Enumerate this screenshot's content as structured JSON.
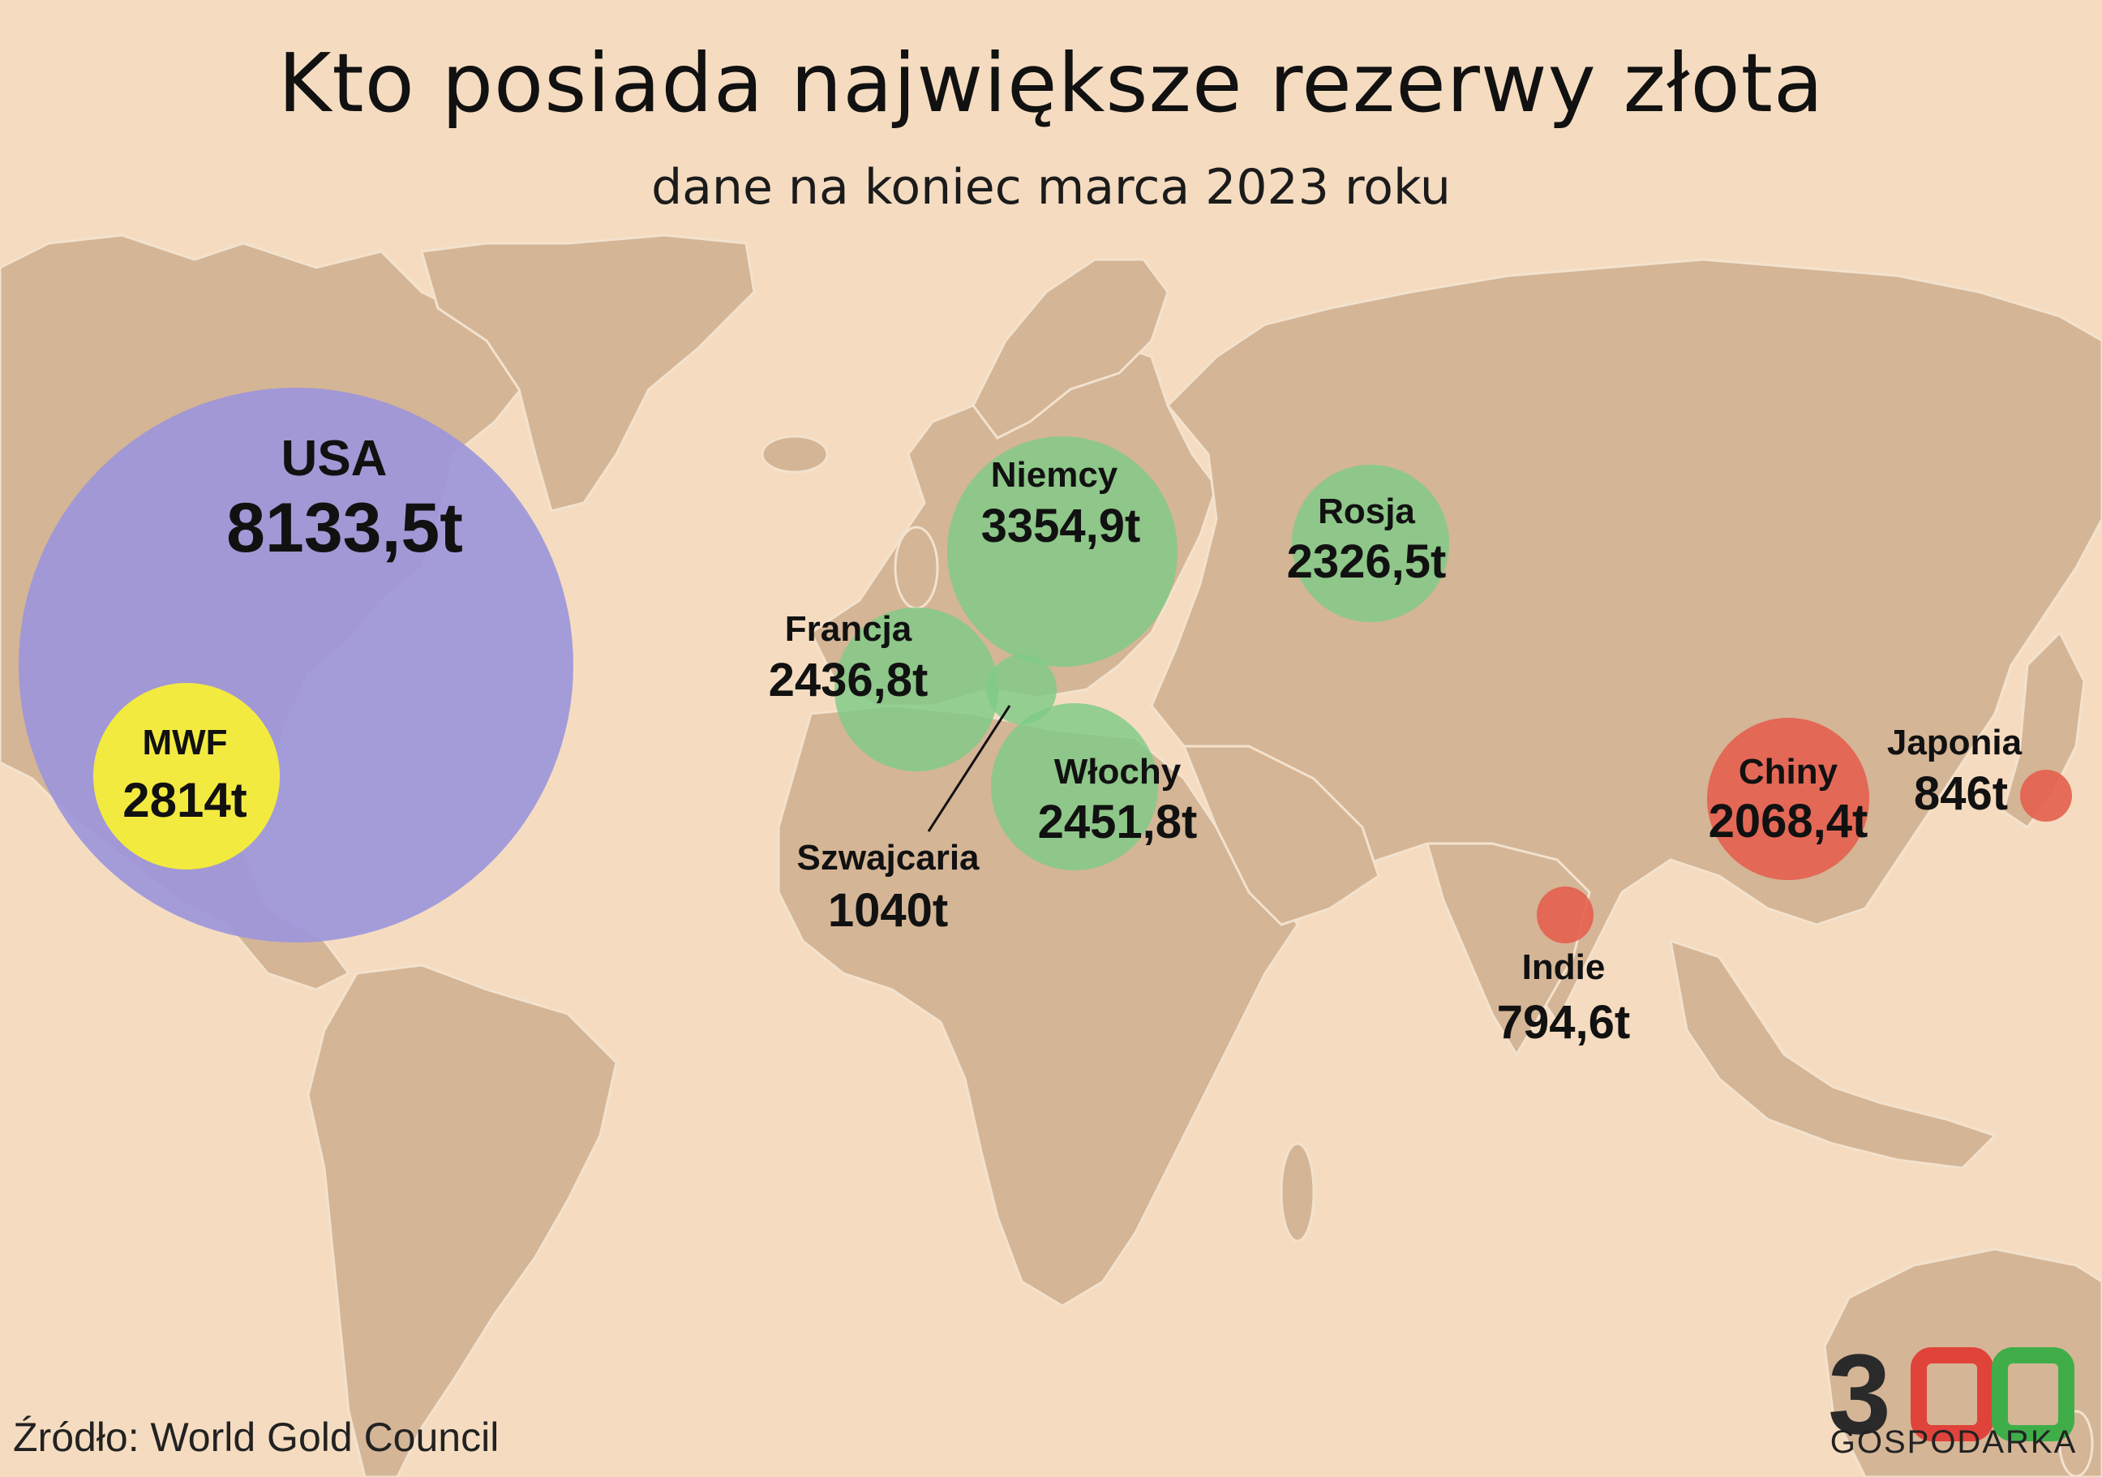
{
  "header": {
    "title": "Kto posiada największe rezerwy złota",
    "subtitle": "dane na koniec marca 2023 roku"
  },
  "source": "Źródło: World Gold Council",
  "logo": {
    "number": "300",
    "name": "GOSPODARKA"
  },
  "colors": {
    "background": "#f5dcc0",
    "land": "#d4b596",
    "usa": "#9b95dc",
    "imf": "#f3ea40",
    "europe": "#7fca86",
    "asia": "#e45f4f"
  },
  "holdings": [
    {
      "name": "USA",
      "value": "8133,5t",
      "tonnes": 8133.5,
      "group": "usa"
    },
    {
      "name": "MWF",
      "value": "2814t",
      "tonnes": 2814,
      "group": "imf"
    },
    {
      "name": "Niemcy",
      "value": "3354,9t",
      "tonnes": 3354.9,
      "group": "europe"
    },
    {
      "name": "Francja",
      "value": "2436,8t",
      "tonnes": 2436.8,
      "group": "europe"
    },
    {
      "name": "Włochy",
      "value": "2451,8t",
      "tonnes": 2451.8,
      "group": "europe"
    },
    {
      "name": "Szwajcaria",
      "value": "1040t",
      "tonnes": 1040,
      "group": "europe"
    },
    {
      "name": "Rosja",
      "value": "2326,5t",
      "tonnes": 2326.5,
      "group": "europe"
    },
    {
      "name": "Chiny",
      "value": "2068,4t",
      "tonnes": 2068.4,
      "group": "asia"
    },
    {
      "name": "Japonia",
      "value": "846t",
      "tonnes": 846,
      "group": "asia"
    },
    {
      "name": "Indie",
      "value": "794,6t",
      "tonnes": 794.6,
      "group": "asia"
    }
  ]
}
